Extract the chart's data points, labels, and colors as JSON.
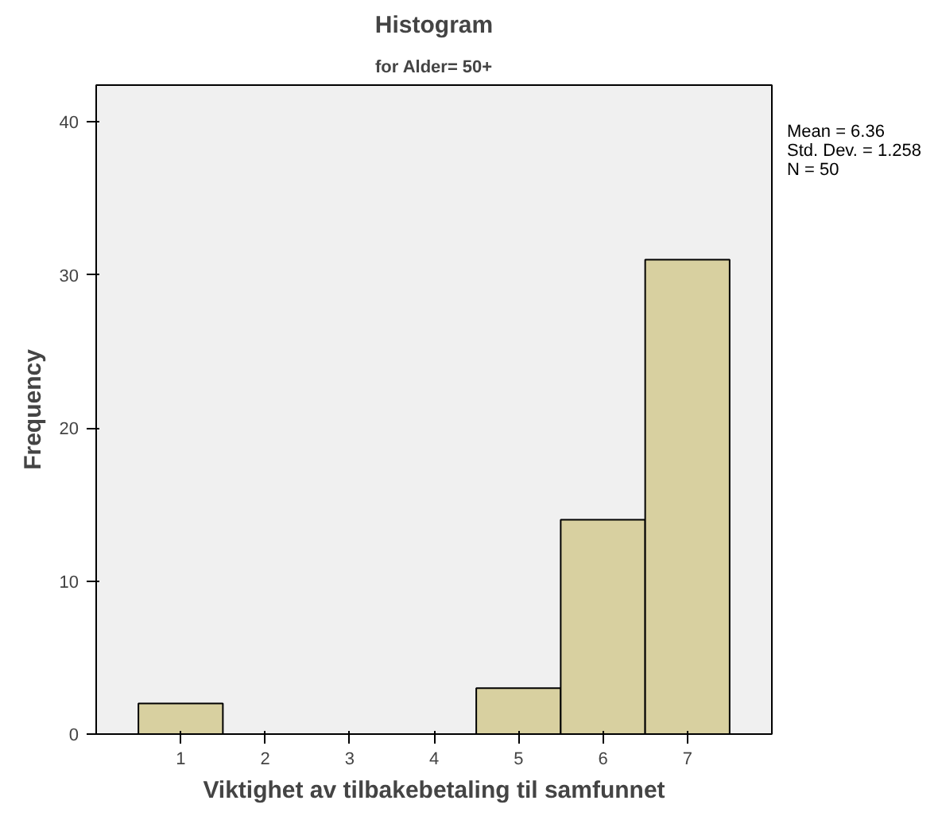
{
  "chart_data": {
    "type": "histogram",
    "title": "Histogram",
    "subtitle": "for Alder= 50+",
    "xlabel": "Viktighet av tilbakebetaling til samfunnet",
    "ylabel": "Frequency",
    "bins": [
      0.5,
      1.5,
      2.5,
      3.5,
      4.5,
      5.5,
      6.5,
      7.5
    ],
    "values": [
      2,
      0,
      0,
      0,
      3,
      14,
      31
    ],
    "color": "#d8d0a0",
    "xlim": [
      0,
      8
    ],
    "ylim": [
      0,
      42.4
    ],
    "xticks": [
      1,
      2,
      3,
      4,
      5,
      6,
      7
    ],
    "yticks": [
      0,
      10,
      20,
      30,
      40
    ],
    "annotations": [
      "Mean = 6.36",
      "Std. Dev. = 1.258",
      "N = 50"
    ],
    "grid": false
  }
}
